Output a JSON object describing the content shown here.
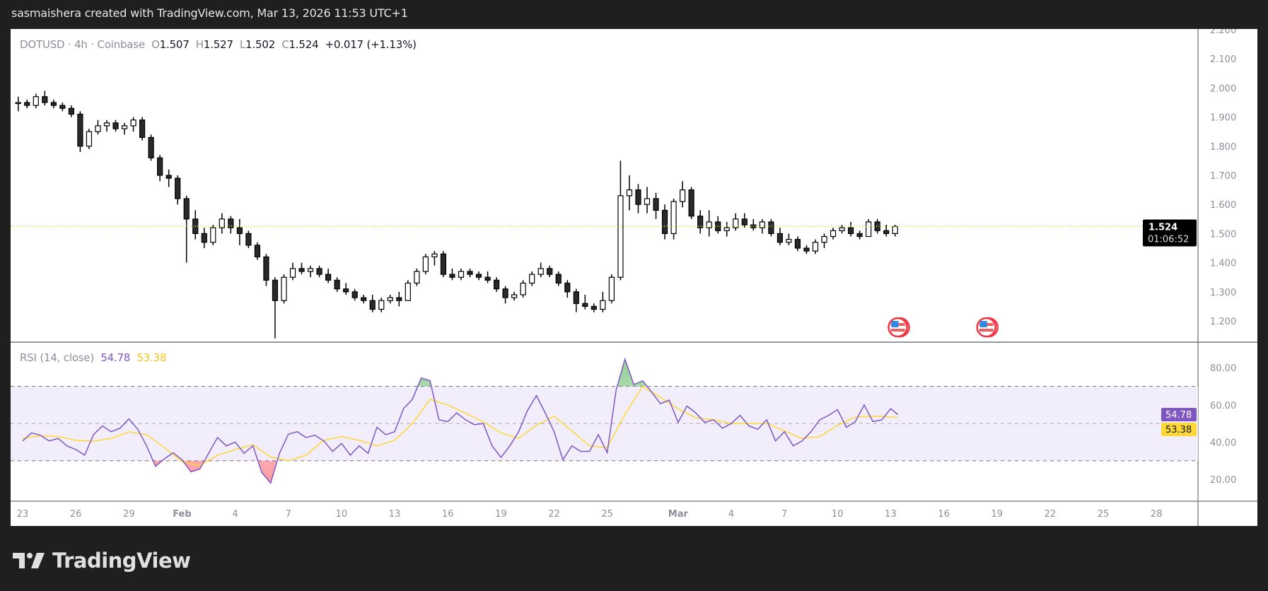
{
  "credit": "sasmaishera created with TradingView.com, Mar 13, 2026 11:53 UTC+1",
  "legend": {
    "symbol": "DOTUSD · 4h · Coinbase",
    "o_label": "O",
    "o": "1.507",
    "h_label": "H",
    "h": "1.527",
    "l_label": "L",
    "l": "1.502",
    "c_label": "C",
    "c": "1.524",
    "change": "+0.017 (+1.13%)"
  },
  "price_axis": {
    "ticks": [
      "1.200",
      "1.300",
      "1.400",
      "1.500",
      "1.600",
      "1.700",
      "1.800",
      "1.900",
      "2.000",
      "2.100",
      "2.200"
    ],
    "last_price": "1.524",
    "countdown": "01:06:52"
  },
  "rsi": {
    "title": "RSI (14, close)",
    "value": "54.78",
    "ma_value": "53.38",
    "ticks": [
      "20.00",
      "40.00",
      "60.00",
      "80.00"
    ],
    "upper_band": 70,
    "middle_band": 50,
    "lower_band": 30
  },
  "time_axis": {
    "labels": [
      {
        "text": "23",
        "day": 0
      },
      {
        "text": "26",
        "day": 3
      },
      {
        "text": "29",
        "day": 6
      },
      {
        "text": "Feb",
        "day": 9,
        "bold": true
      },
      {
        "text": "4",
        "day": 12
      },
      {
        "text": "7",
        "day": 15
      },
      {
        "text": "10",
        "day": 18
      },
      {
        "text": "13",
        "day": 21
      },
      {
        "text": "16",
        "day": 24
      },
      {
        "text": "19",
        "day": 27
      },
      {
        "text": "22",
        "day": 30
      },
      {
        "text": "25",
        "day": 33
      },
      {
        "text": "Mar",
        "day": 37,
        "bold": true
      },
      {
        "text": "4",
        "day": 40
      },
      {
        "text": "7",
        "day": 43
      },
      {
        "text": "10",
        "day": 46
      },
      {
        "text": "13",
        "day": 49
      },
      {
        "text": "16",
        "day": 52
      },
      {
        "text": "19",
        "day": 55
      },
      {
        "text": "22",
        "day": 58
      },
      {
        "text": "25",
        "day": 61
      },
      {
        "text": "28",
        "day": 64
      }
    ]
  },
  "events": [
    {
      "icon": "us-flag-icon",
      "day": 49.4
    },
    {
      "icon": "us-flag-icon",
      "day": 54.4
    }
  ],
  "colors": {
    "rsi_line": "#7e57c2",
    "rsi_ma": "#fdd835",
    "band_fill": "#f1edfa",
    "up_body": "#ffffff",
    "down_body": "#2a2a2a",
    "price_line": "#f5e600",
    "last_price_bg": "#000000"
  },
  "logo_text": "TradingView",
  "chart_data": {
    "type": "candlestick",
    "symbol": "DOTUSD",
    "interval": "4h",
    "note_resolution": "12h",
    "start": "Jan 22 12:00",
    "ylim": [
      1.15,
      2.2
    ],
    "candles": [
      [
        1.95,
        1.97,
        1.92,
        1.95
      ],
      [
        1.95,
        1.96,
        1.93,
        1.94
      ],
      [
        1.94,
        1.98,
        1.93,
        1.97
      ],
      [
        1.97,
        1.99,
        1.94,
        1.95
      ],
      [
        1.95,
        1.96,
        1.93,
        1.94
      ],
      [
        1.94,
        1.95,
        1.92,
        1.93
      ],
      [
        1.93,
        1.94,
        1.9,
        1.91
      ],
      [
        1.91,
        1.92,
        1.78,
        1.8
      ],
      [
        1.8,
        1.86,
        1.79,
        1.85
      ],
      [
        1.85,
        1.89,
        1.84,
        1.87
      ],
      [
        1.87,
        1.89,
        1.85,
        1.88
      ],
      [
        1.88,
        1.89,
        1.85,
        1.86
      ],
      [
        1.86,
        1.88,
        1.84,
        1.87
      ],
      [
        1.87,
        1.9,
        1.85,
        1.89
      ],
      [
        1.89,
        1.9,
        1.82,
        1.83
      ],
      [
        1.83,
        1.84,
        1.75,
        1.76
      ],
      [
        1.76,
        1.77,
        1.68,
        1.7
      ],
      [
        1.7,
        1.72,
        1.66,
        1.69
      ],
      [
        1.69,
        1.7,
        1.6,
        1.62
      ],
      [
        1.62,
        1.63,
        1.4,
        1.55
      ],
      [
        1.55,
        1.58,
        1.48,
        1.5
      ],
      [
        1.5,
        1.52,
        1.45,
        1.47
      ],
      [
        1.47,
        1.53,
        1.46,
        1.52
      ],
      [
        1.52,
        1.57,
        1.5,
        1.55
      ],
      [
        1.55,
        1.56,
        1.5,
        1.52
      ],
      [
        1.52,
        1.55,
        1.46,
        1.5
      ],
      [
        1.5,
        1.51,
        1.45,
        1.46
      ],
      [
        1.46,
        1.47,
        1.41,
        1.42
      ],
      [
        1.42,
        1.43,
        1.32,
        1.34
      ],
      [
        1.34,
        1.35,
        1.14,
        1.27
      ],
      [
        1.27,
        1.36,
        1.26,
        1.35
      ],
      [
        1.35,
        1.4,
        1.34,
        1.38
      ],
      [
        1.38,
        1.4,
        1.36,
        1.37
      ],
      [
        1.37,
        1.39,
        1.35,
        1.38
      ],
      [
        1.38,
        1.39,
        1.35,
        1.36
      ],
      [
        1.36,
        1.38,
        1.33,
        1.34
      ],
      [
        1.34,
        1.35,
        1.3,
        1.31
      ],
      [
        1.31,
        1.33,
        1.29,
        1.3
      ],
      [
        1.3,
        1.31,
        1.27,
        1.28
      ],
      [
        1.28,
        1.29,
        1.26,
        1.27
      ],
      [
        1.27,
        1.29,
        1.23,
        1.24
      ],
      [
        1.24,
        1.28,
        1.23,
        1.27
      ],
      [
        1.27,
        1.29,
        1.26,
        1.28
      ],
      [
        1.28,
        1.3,
        1.25,
        1.27
      ],
      [
        1.27,
        1.34,
        1.27,
        1.33
      ],
      [
        1.33,
        1.38,
        1.32,
        1.37
      ],
      [
        1.37,
        1.43,
        1.36,
        1.42
      ],
      [
        1.42,
        1.44,
        1.39,
        1.43
      ],
      [
        1.43,
        1.44,
        1.35,
        1.36
      ],
      [
        1.36,
        1.38,
        1.34,
        1.35
      ],
      [
        1.35,
        1.38,
        1.34,
        1.37
      ],
      [
        1.37,
        1.38,
        1.35,
        1.36
      ],
      [
        1.36,
        1.37,
        1.34,
        1.35
      ],
      [
        1.35,
        1.37,
        1.33,
        1.34
      ],
      [
        1.34,
        1.35,
        1.3,
        1.31
      ],
      [
        1.31,
        1.32,
        1.26,
        1.28
      ],
      [
        1.28,
        1.3,
        1.27,
        1.29
      ],
      [
        1.29,
        1.34,
        1.28,
        1.33
      ],
      [
        1.33,
        1.37,
        1.32,
        1.36
      ],
      [
        1.36,
        1.4,
        1.35,
        1.38
      ],
      [
        1.38,
        1.39,
        1.35,
        1.36
      ],
      [
        1.36,
        1.37,
        1.32,
        1.33
      ],
      [
        1.33,
        1.34,
        1.28,
        1.3
      ],
      [
        1.3,
        1.31,
        1.23,
        1.26
      ],
      [
        1.26,
        1.29,
        1.24,
        1.25
      ],
      [
        1.25,
        1.26,
        1.23,
        1.24
      ],
      [
        1.24,
        1.3,
        1.23,
        1.27
      ],
      [
        1.27,
        1.36,
        1.26,
        1.35
      ],
      [
        1.35,
        1.75,
        1.34,
        1.63
      ],
      [
        1.63,
        1.7,
        1.58,
        1.65
      ],
      [
        1.65,
        1.67,
        1.57,
        1.6
      ],
      [
        1.6,
        1.66,
        1.57,
        1.62
      ],
      [
        1.62,
        1.64,
        1.55,
        1.58
      ],
      [
        1.58,
        1.6,
        1.48,
        1.5
      ],
      [
        1.5,
        1.62,
        1.48,
        1.61
      ],
      [
        1.61,
        1.68,
        1.59,
        1.65
      ],
      [
        1.65,
        1.66,
        1.55,
        1.56
      ],
      [
        1.56,
        1.58,
        1.5,
        1.52
      ],
      [
        1.52,
        1.58,
        1.49,
        1.54
      ],
      [
        1.54,
        1.56,
        1.5,
        1.51
      ],
      [
        1.51,
        1.54,
        1.49,
        1.52
      ],
      [
        1.52,
        1.57,
        1.51,
        1.55
      ],
      [
        1.55,
        1.57,
        1.52,
        1.53
      ],
      [
        1.53,
        1.55,
        1.51,
        1.52
      ],
      [
        1.52,
        1.55,
        1.5,
        1.54
      ],
      [
        1.54,
        1.55,
        1.49,
        1.5
      ],
      [
        1.5,
        1.52,
        1.46,
        1.47
      ],
      [
        1.47,
        1.5,
        1.46,
        1.48
      ],
      [
        1.48,
        1.49,
        1.44,
        1.45
      ],
      [
        1.45,
        1.46,
        1.43,
        1.44
      ],
      [
        1.44,
        1.48,
        1.43,
        1.47
      ],
      [
        1.47,
        1.5,
        1.45,
        1.49
      ],
      [
        1.49,
        1.52,
        1.48,
        1.51
      ],
      [
        1.51,
        1.53,
        1.5,
        1.52
      ],
      [
        1.52,
        1.54,
        1.49,
        1.5
      ],
      [
        1.5,
        1.51,
        1.48,
        1.49
      ],
      [
        1.49,
        1.55,
        1.49,
        1.54
      ],
      [
        1.54,
        1.55,
        1.5,
        1.51
      ],
      [
        1.51,
        1.53,
        1.49,
        1.5
      ],
      [
        1.5,
        1.53,
        1.49,
        1.524
      ]
    ],
    "rsi_start": "Jan 23 00:00",
    "rsi_values": [
      40.6,
      45,
      43.7,
      40.6,
      42,
      38,
      36,
      33,
      44,
      48.7,
      45.6,
      47.5,
      52.5,
      46.9,
      38,
      27,
      31,
      34.3,
      30.5,
      24,
      25.5,
      34,
      42.5,
      38,
      40,
      34,
      38,
      23.6,
      18,
      34,
      44.3,
      45.6,
      42.5,
      43.7,
      40.6,
      35,
      39.3,
      33,
      38,
      34,
      48,
      44,
      45.6,
      58,
      63,
      74.5,
      73,
      52,
      51,
      55.7,
      52,
      49.4,
      50,
      38,
      31.8,
      38,
      45.6,
      57,
      65,
      55.7,
      45.6,
      30.5,
      38,
      35,
      35,
      44,
      34.3,
      68,
      84.6,
      71,
      73,
      67,
      60.7,
      62.6,
      50.6,
      59.4,
      55.7,
      50.6,
      52,
      47.5,
      50,
      54.4,
      48.7,
      46.9,
      52,
      40.6,
      45.6,
      38,
      40.6,
      45.6,
      52,
      54.4,
      57.5,
      48,
      51,
      60,
      51,
      52,
      58,
      54.78
    ],
    "rsi_ma_daily": [
      42,
      43.5,
      43,
      41,
      40.5,
      42,
      45.5,
      44,
      37,
      29.5,
      27.5,
      33,
      36,
      38.5,
      32,
      30,
      33,
      41,
      43,
      41,
      38,
      41,
      50,
      63,
      60,
      55.5,
      51,
      45,
      42,
      49,
      54,
      46,
      38,
      37,
      55,
      70,
      64,
      58,
      53,
      52,
      50,
      50,
      50,
      46,
      42,
      43,
      49,
      53.5,
      54,
      53.38
    ],
    "rsi_ylim": [
      10,
      95
    ]
  }
}
